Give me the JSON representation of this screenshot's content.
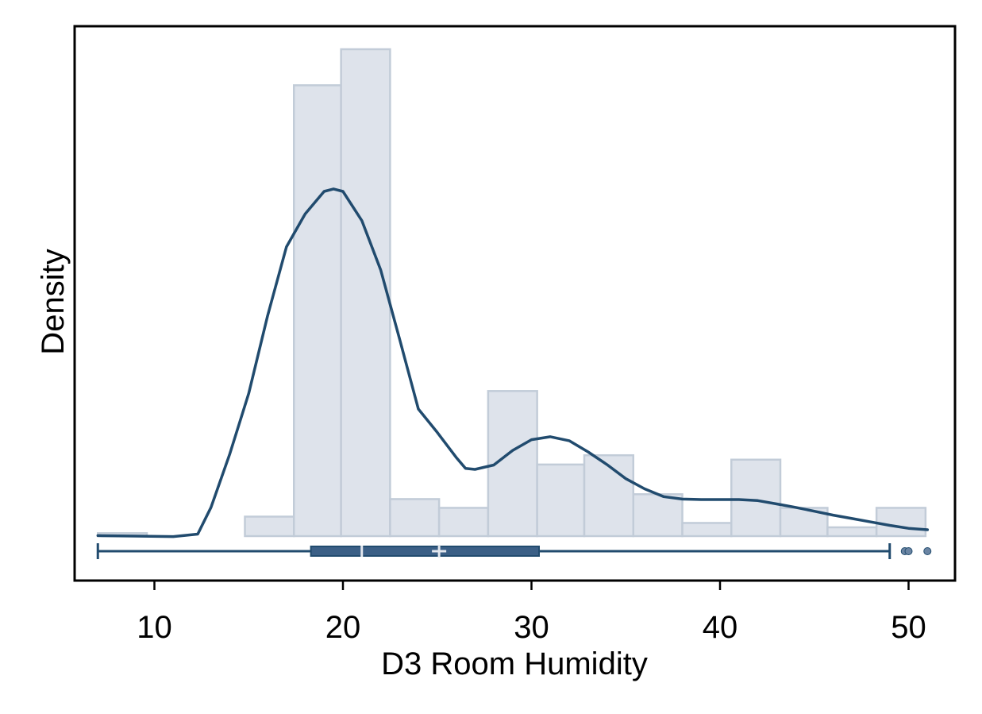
{
  "chart_data": {
    "type": "histogram",
    "xlabel": "D3 Room Humidity",
    "ylabel": "Density",
    "xlim": [
      5,
      52
    ],
    "ylim": [
      0,
      0.1
    ],
    "xticks": [
      10,
      20,
      30,
      40,
      50
    ],
    "grid": false,
    "legend": "none",
    "colors": {
      "bar_fill": "#dee3eb",
      "bar_stroke": "#c2ccd8",
      "line": "#214b6e",
      "box_fill": "#3b5f86",
      "marker": "#e3e7ee",
      "outlier": "#6b85a3"
    },
    "bins": [
      {
        "x0": 7.0,
        "x1": 9.6,
        "density": 0.0006
      },
      {
        "x0": 14.8,
        "x1": 17.4,
        "density": 0.004
      },
      {
        "x0": 17.4,
        "x1": 19.9,
        "density": 0.0926
      },
      {
        "x0": 19.9,
        "x1": 22.5,
        "density": 0.1
      },
      {
        "x0": 22.5,
        "x1": 25.1,
        "density": 0.0076
      },
      {
        "x0": 25.1,
        "x1": 27.7,
        "density": 0.0058
      },
      {
        "x0": 27.7,
        "x1": 30.3,
        "density": 0.0298
      },
      {
        "x0": 30.3,
        "x1": 32.8,
        "density": 0.0147
      },
      {
        "x0": 32.8,
        "x1": 35.4,
        "density": 0.0166
      },
      {
        "x0": 35.4,
        "x1": 38.0,
        "density": 0.0086
      },
      {
        "x0": 38.0,
        "x1": 40.6,
        "density": 0.0027
      },
      {
        "x0": 40.6,
        "x1": 43.2,
        "density": 0.0157
      },
      {
        "x0": 43.2,
        "x1": 45.7,
        "density": 0.0058
      },
      {
        "x0": 45.7,
        "x1": 48.3,
        "density": 0.0018
      },
      {
        "x0": 48.3,
        "x1": 50.9,
        "density": 0.0058
      }
    ],
    "kde": {
      "x": [
        7.0,
        9.0,
        11.0,
        12.3,
        13.0,
        14.0,
        15.0,
        16.0,
        17.0,
        18.0,
        19.0,
        19.5,
        20.0,
        21.0,
        22.0,
        23.0,
        24.0,
        25.0,
        26.0,
        26.5,
        27.0,
        28.0,
        29.0,
        30.0,
        31.0,
        32.0,
        33.0,
        34.0,
        35.0,
        36.0,
        37.0,
        38.0,
        39.0,
        40.0,
        41.0,
        42.0,
        43.0,
        44.0,
        45.0,
        46.0,
        47.0,
        48.0,
        49.0,
        50.0,
        51.0
      ],
      "y": [
        0.0001,
        0.0,
        -0.0001,
        0.0004,
        0.0059,
        0.0169,
        0.0293,
        0.0452,
        0.0594,
        0.0662,
        0.0708,
        0.0713,
        0.0708,
        0.0648,
        0.0547,
        0.0405,
        0.0261,
        0.0213,
        0.0162,
        0.0139,
        0.0137,
        0.0146,
        0.0176,
        0.0198,
        0.0204,
        0.0196,
        0.0173,
        0.0147,
        0.0118,
        0.0097,
        0.0081,
        0.0076,
        0.0075,
        0.0075,
        0.0075,
        0.0073,
        0.0066,
        0.0059,
        0.0051,
        0.0043,
        0.0036,
        0.0029,
        0.0022,
        0.0016,
        0.0013
      ]
    },
    "boxplot": {
      "whisker_low": 7.0,
      "q1": 18.3,
      "median": 21.0,
      "mean": 25.1,
      "q3": 30.4,
      "whisker_high": 49.0,
      "outliers": [
        49.8,
        50.0,
        51.0
      ]
    }
  }
}
